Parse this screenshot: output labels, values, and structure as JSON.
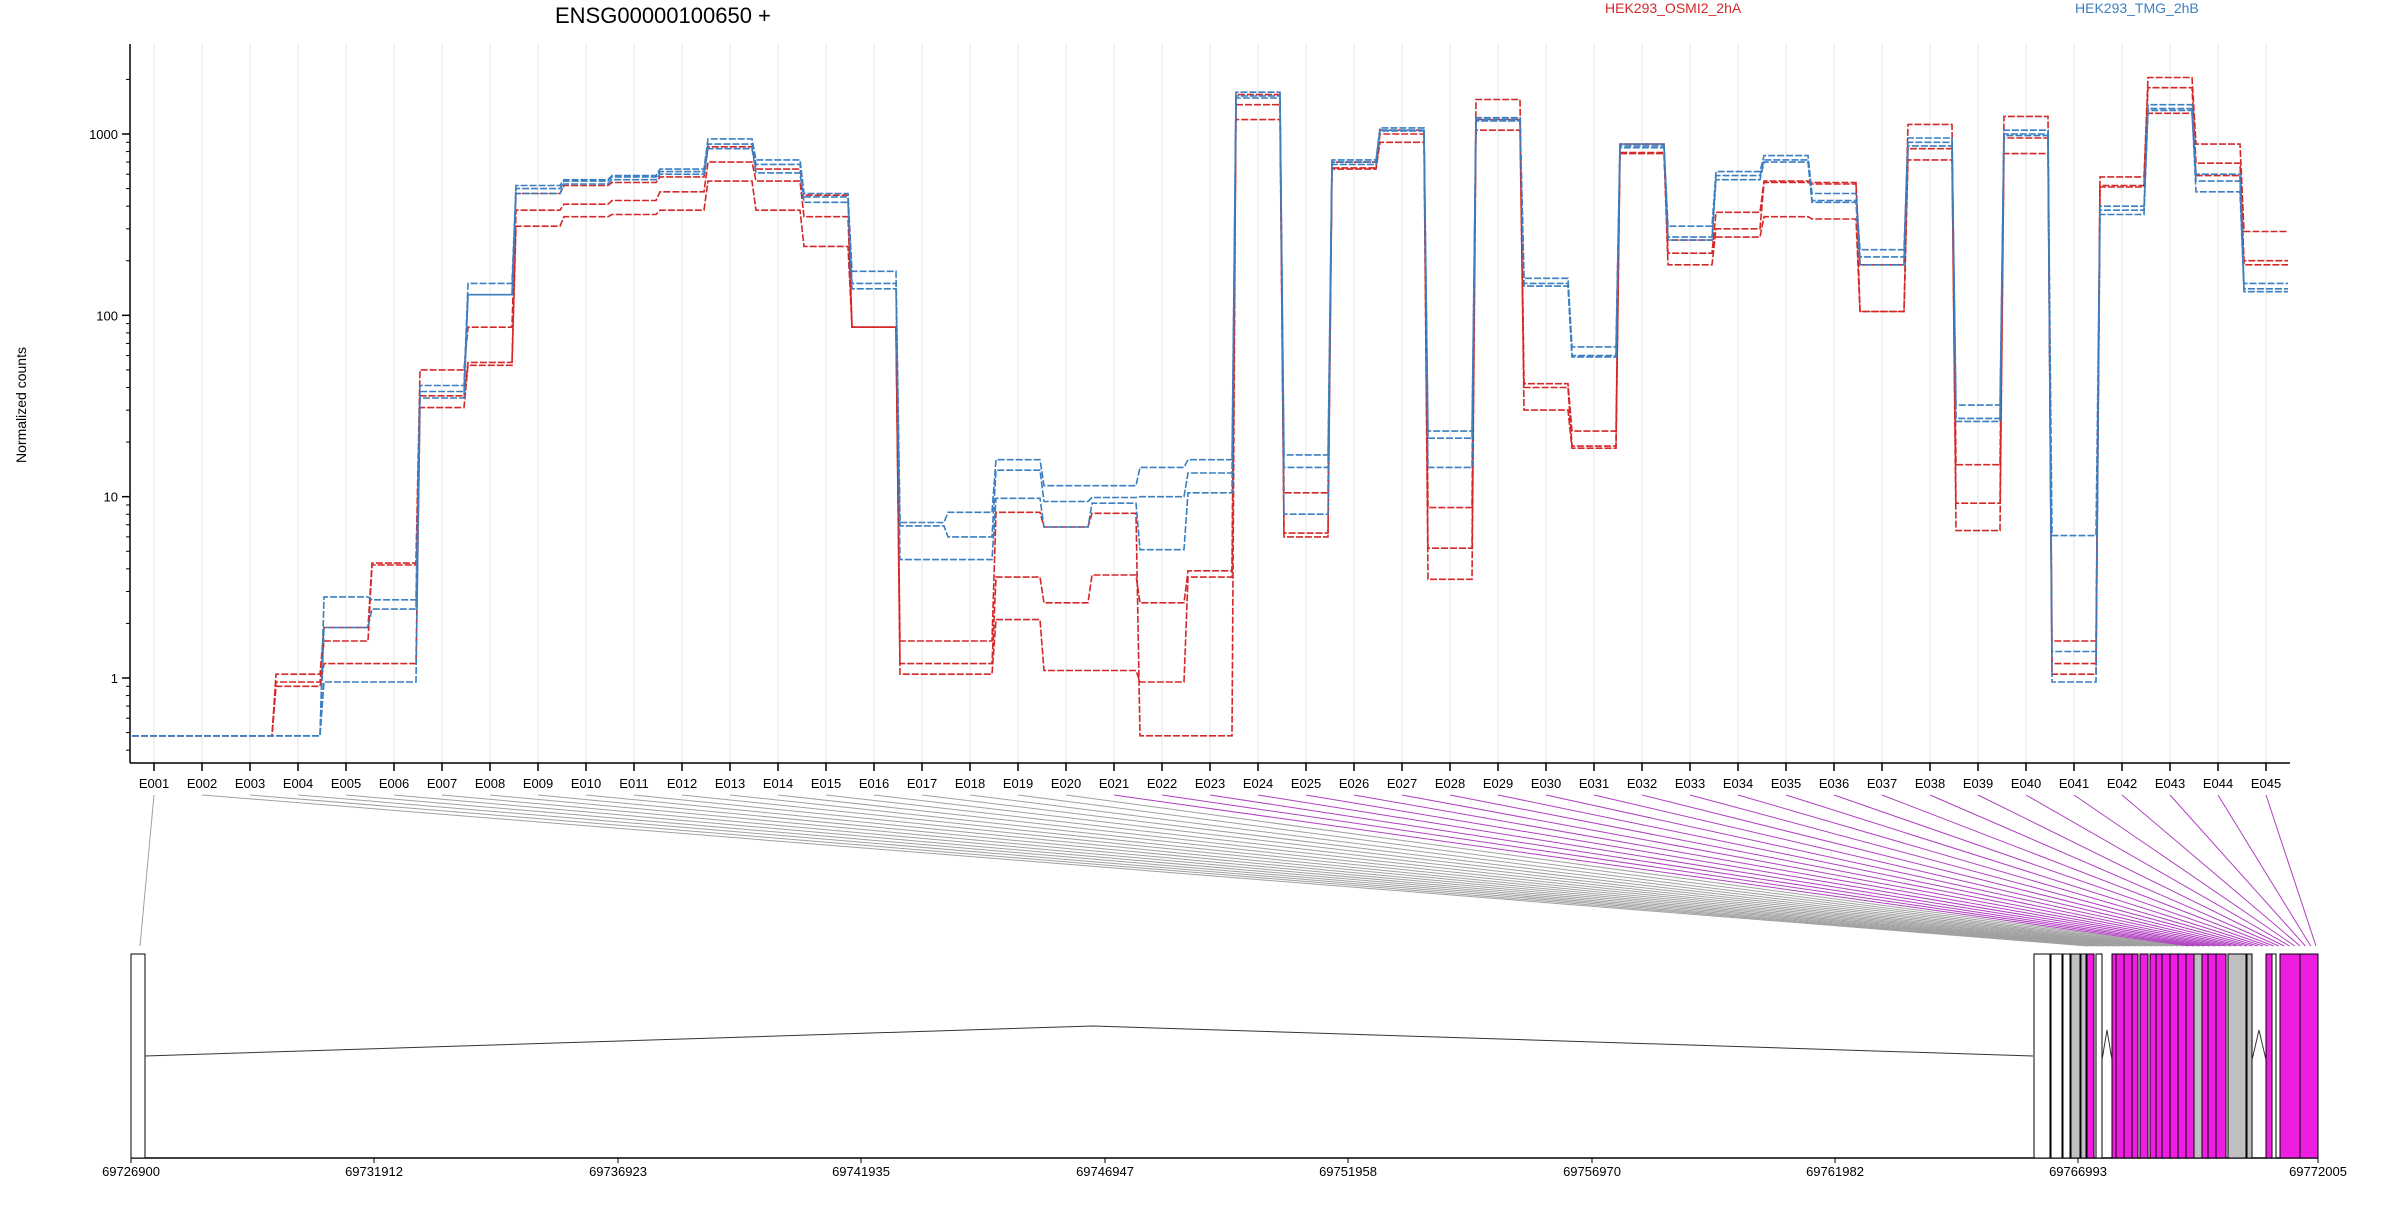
{
  "chart_data": {
    "type": "line",
    "title": "ENSG00000100650 +",
    "ylabel": "Normalized counts",
    "yscale": "log",
    "ylim": [
      0.4,
      2900
    ],
    "yticks": [
      1,
      10,
      100,
      1000
    ],
    "ytick_labels": [
      "1",
      "10",
      "100",
      "1000"
    ],
    "categories": [
      "E001",
      "E002",
      "E003",
      "E004",
      "E005",
      "E006",
      "E007",
      "E008",
      "E009",
      "E010",
      "E011",
      "E012",
      "E013",
      "E014",
      "E015",
      "E016",
      "E017",
      "E018",
      "E019",
      "E020",
      "E021",
      "E022",
      "E023",
      "E024",
      "E025",
      "E026",
      "E027",
      "E028",
      "E029",
      "E030",
      "E031",
      "E032",
      "E033",
      "E034",
      "E035",
      "E036",
      "E037",
      "E038",
      "E039",
      "E040",
      "E041",
      "E042",
      "E043",
      "E044",
      "E045"
    ],
    "legend": [
      {
        "label": "HEK293_OSMI2_2hA",
        "color": "#d62728"
      },
      {
        "label": "HEK293_TMG_2hB",
        "color": "#3a7fc1"
      }
    ],
    "series": [
      {
        "group": "HEK293_OSMI2_2hA",
        "color": "#d62728",
        "values": [
          0.48,
          0.48,
          0.48,
          1.05,
          1.9,
          4.3,
          50,
          86,
          470,
          520,
          540,
          580,
          850,
          640,
          460,
          86,
          1.6,
          1.6,
          8.2,
          6.8,
          8.1,
          0.48,
          0.48,
          1650,
          10.5,
          700,
          1050,
          8.7,
          1550,
          42,
          23,
          880,
          220,
          370,
          550,
          540,
          190,
          1130,
          15,
          1250,
          1.6,
          580,
          2050,
          880,
          290
        ]
      },
      {
        "group": "HEK293_OSMI2_2hA",
        "color": "#d62728",
        "values": [
          0.48,
          0.48,
          0.48,
          0.95,
          1.6,
          4.2,
          36,
          55,
          380,
          410,
          430,
          480,
          700,
          550,
          350,
          86,
          1.2,
          1.2,
          3.6,
          2.6,
          3.7,
          2.6,
          3.9,
          1450,
          6.3,
          650,
          1000,
          5.2,
          1200,
          30,
          18.5,
          780,
          190,
          300,
          540,
          530,
          105,
          720,
          9.2,
          780,
          1.2,
          520,
          1800,
          690,
          200
        ]
      },
      {
        "group": "HEK293_OSMI2_2hA",
        "color": "#d62728",
        "values": [
          0.48,
          0.48,
          0.48,
          0.9,
          1.2,
          1.2,
          31,
          53,
          310,
          350,
          360,
          380,
          550,
          380,
          240,
          86,
          1.05,
          1.05,
          2.1,
          1.1,
          1.1,
          0.95,
          3.6,
          1200,
          6.0,
          640,
          900,
          3.5,
          1050,
          40,
          19,
          790,
          260,
          270,
          350,
          340,
          105,
          830,
          6.5,
          950,
          1.05,
          510,
          1300,
          590,
          190
        ]
      },
      {
        "group": "HEK293_TMG_2hB",
        "color": "#3a7fc1",
        "values": [
          0.48,
          0.48,
          0.48,
          0.48,
          2.8,
          2.7,
          41,
          150,
          520,
          560,
          590,
          640,
          940,
          720,
          470,
          175,
          7.2,
          8.2,
          16,
          11.5,
          11.5,
          14.5,
          16,
          1700,
          17,
          720,
          1080,
          23,
          1230,
          160,
          67,
          880,
          310,
          620,
          760,
          470,
          230,
          950,
          32,
          1050,
          6.1,
          400,
          1450,
          600,
          150
        ]
      },
      {
        "group": "HEK293_TMG_2hB",
        "color": "#3a7fc1",
        "values": [
          0.48,
          0.48,
          0.48,
          0.48,
          1.9,
          2.4,
          38,
          130,
          500,
          550,
          580,
          620,
          880,
          680,
          450,
          150,
          6.9,
          6.0,
          14,
          9.4,
          9.9,
          10,
          13.5,
          1620,
          14.5,
          700,
          1050,
          21,
          1200,
          150,
          60,
          860,
          270,
          590,
          720,
          430,
          210,
          900,
          27,
          1000,
          1.4,
          380,
          1380,
          550,
          140
        ]
      },
      {
        "group": "HEK293_TMG_2hB",
        "color": "#3a7fc1",
        "values": [
          0.48,
          0.48,
          0.48,
          0.48,
          0.95,
          0.95,
          35,
          130,
          470,
          530,
          560,
          600,
          830,
          610,
          420,
          140,
          4.5,
          4.5,
          9.8,
          6.8,
          9.2,
          5.1,
          10.5,
          1580,
          8.0,
          680,
          1040,
          14.5,
          1180,
          145,
          59,
          840,
          260,
          560,
          700,
          420,
          190,
          860,
          26,
          980,
          0.95,
          360,
          1350,
          480,
          135
        ]
      }
    ],
    "track": {
      "coordinate_ticks": [
        "69726900",
        "69731912",
        "69736923",
        "69741935",
        "69746947",
        "69751958",
        "69756970",
        "69761982",
        "69766993",
        "69772005"
      ],
      "exon_color_constitutive": "#c0c0c0",
      "exon_color_highlight": "#ee1ee0",
      "connector_gray": "#a0a0a0",
      "connector_purple": "#b040c0"
    }
  }
}
